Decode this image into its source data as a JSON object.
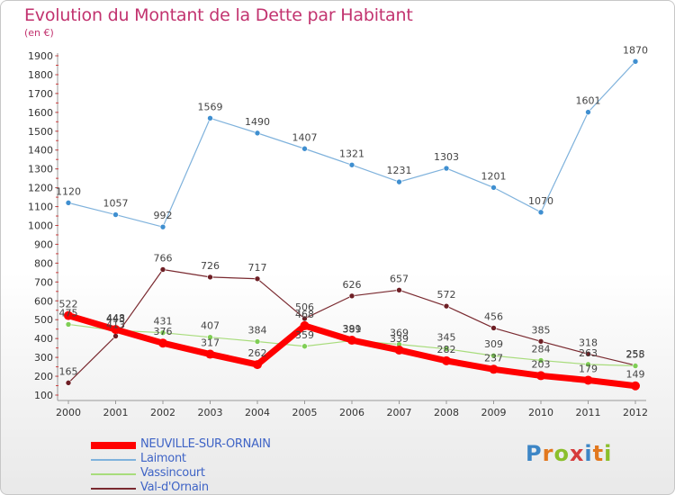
{
  "title": "Evolution du Montant de la Dette par Habitant",
  "unit_label": "(en €)",
  "logo": {
    "letters": [
      "P",
      "r",
      "o",
      "x",
      "i",
      "t",
      "i"
    ],
    "colors": [
      "#3d86c6",
      "#e2781e",
      "#8bbf2c",
      "#d63c3c",
      "#3d86c6",
      "#e2781e",
      "#8bbf2c"
    ]
  },
  "chart_data": {
    "type": "line",
    "title": "Evolution du Montant de la Dette par Habitant",
    "ylabel": "(en €)",
    "xlabel": "",
    "ylim": [
      100,
      1900
    ],
    "yticks": [
      100,
      200,
      300,
      400,
      500,
      600,
      700,
      800,
      900,
      1000,
      1100,
      1200,
      1300,
      1400,
      1500,
      1600,
      1700,
      1800,
      1900
    ],
    "x": [
      "2000",
      "2001",
      "2002",
      "2003",
      "2004",
      "2005",
      "2006",
      "2007",
      "2008",
      "2009",
      "2010",
      "2011",
      "2012"
    ],
    "grid": false,
    "legend_position": "bottom-left",
    "series": [
      {
        "name": "NEUVILLE-SUR-ORNAIN",
        "color": "#ff0000",
        "marker_color": "#ff0000",
        "values": [
          522,
          448,
          376,
          317,
          262,
          468,
          391,
          339,
          282,
          237,
          203,
          179,
          149
        ]
      },
      {
        "name": "Laimont",
        "color": "#7fb2dc",
        "marker_color": "#3f8fd0",
        "values": [
          1120,
          1057,
          992,
          1569,
          1490,
          1407,
          1321,
          1231,
          1303,
          1201,
          1070,
          1601,
          1870
        ]
      },
      {
        "name": "Vassincourt",
        "color": "#a8dc7c",
        "marker_color": "#7fce55",
        "values": [
          475,
          443,
          431,
          407,
          384,
          359,
          389,
          369,
          345,
          309,
          284,
          263,
          255
        ]
      },
      {
        "name": "Val-d'Ornain",
        "color": "#7a2a30",
        "marker_color": "#6e1f25",
        "values": [
          165,
          413,
          766,
          726,
          717,
          506,
          626,
          657,
          572,
          456,
          385,
          318,
          258
        ]
      }
    ]
  }
}
